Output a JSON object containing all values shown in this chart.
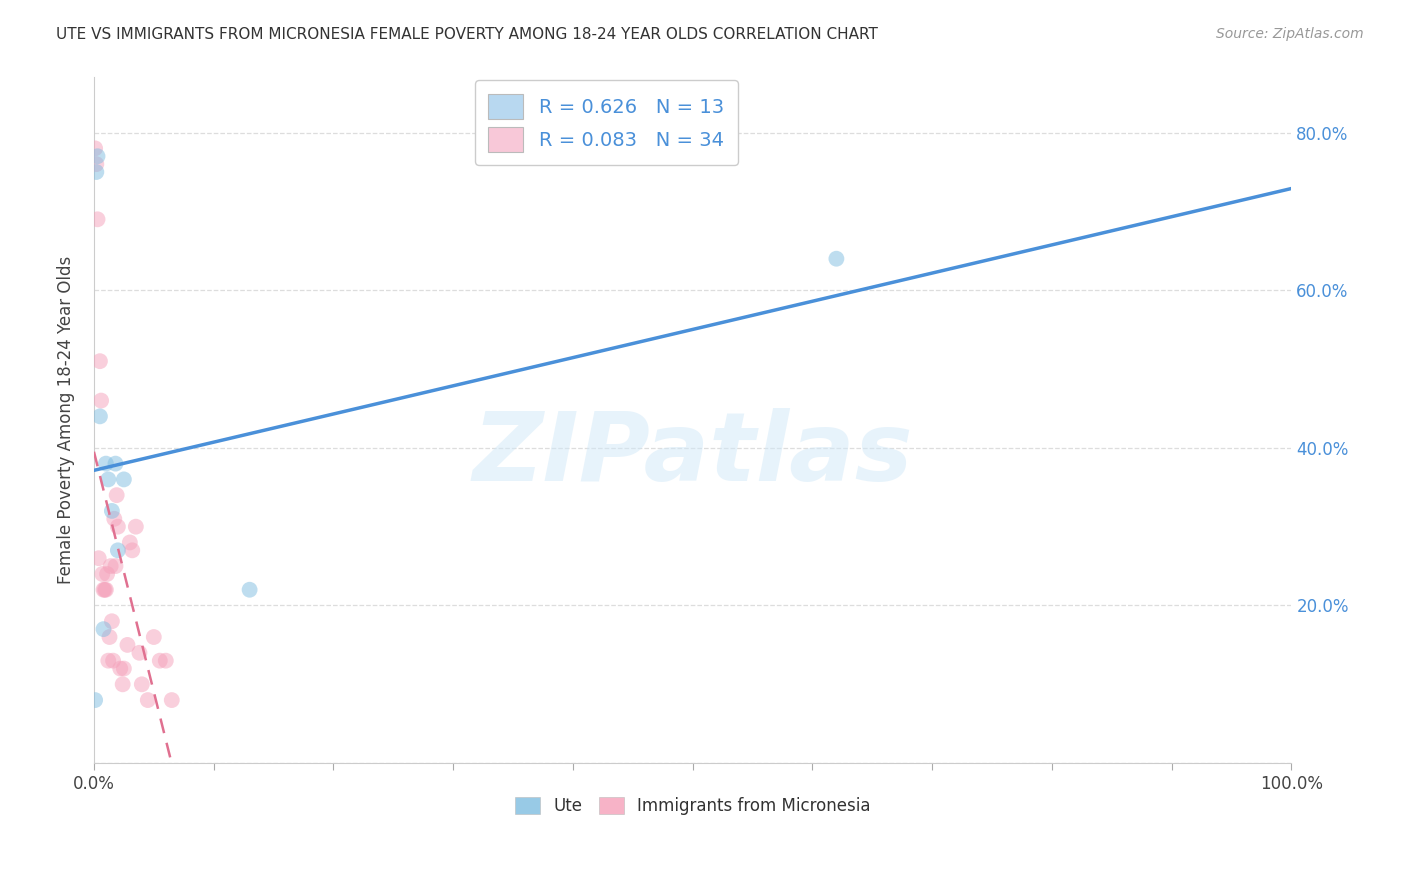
{
  "title": "UTE VS IMMIGRANTS FROM MICRONESIA FEMALE POVERTY AMONG 18-24 YEAR OLDS CORRELATION CHART",
  "source": "Source: ZipAtlas.com",
  "ylabel": "Female Poverty Among 18-24 Year Olds",
  "ute_R": 0.626,
  "ute_N": 13,
  "micro_R": 0.083,
  "micro_N": 34,
  "ute_color": "#7fbde0",
  "micro_color": "#f5a0ba",
  "ute_line_color": "#4a90d9",
  "micro_line_color": "#e07090",
  "legend_box_ute": "#b8d8f0",
  "legend_box_micro": "#f8c8d8",
  "watermark": "ZIPatlas",
  "ute_x": [
    0.002,
    0.003,
    0.005,
    0.01,
    0.012,
    0.015,
    0.018,
    0.02,
    0.025,
    0.13,
    0.62,
    0.001,
    0.008
  ],
  "ute_y": [
    0.75,
    0.77,
    0.44,
    0.38,
    0.36,
    0.32,
    0.38,
    0.27,
    0.36,
    0.22,
    0.64,
    0.08,
    0.17
  ],
  "micro_x": [
    0.001,
    0.002,
    0.003,
    0.004,
    0.005,
    0.006,
    0.007,
    0.008,
    0.009,
    0.01,
    0.011,
    0.012,
    0.013,
    0.014,
    0.015,
    0.016,
    0.017,
    0.018,
    0.019,
    0.02,
    0.022,
    0.024,
    0.025,
    0.028,
    0.03,
    0.032,
    0.035,
    0.038,
    0.04,
    0.045,
    0.05,
    0.055,
    0.06,
    0.065
  ],
  "micro_y": [
    0.78,
    0.76,
    0.69,
    0.26,
    0.51,
    0.46,
    0.24,
    0.22,
    0.22,
    0.22,
    0.24,
    0.13,
    0.16,
    0.25,
    0.18,
    0.13,
    0.31,
    0.25,
    0.34,
    0.3,
    0.12,
    0.1,
    0.12,
    0.15,
    0.28,
    0.27,
    0.3,
    0.14,
    0.1,
    0.08,
    0.16,
    0.13,
    0.13,
    0.08
  ],
  "xlim": [
    0.0,
    1.0
  ],
  "ylim": [
    0.0,
    0.87
  ],
  "xticks": [
    0.0,
    0.1,
    0.2,
    0.3,
    0.4,
    0.5,
    0.6,
    0.7,
    0.8,
    0.9,
    1.0
  ],
  "yticks": [
    0.0,
    0.2,
    0.4,
    0.6,
    0.8
  ],
  "xtick_labels_show": [
    "0.0%",
    "100.0%"
  ],
  "ytick_labels_right": [
    "",
    "20.0%",
    "40.0%",
    "60.0%",
    "80.0%"
  ],
  "grid_color": "#dddddd",
  "marker_size": 130,
  "marker_alpha": 0.5
}
